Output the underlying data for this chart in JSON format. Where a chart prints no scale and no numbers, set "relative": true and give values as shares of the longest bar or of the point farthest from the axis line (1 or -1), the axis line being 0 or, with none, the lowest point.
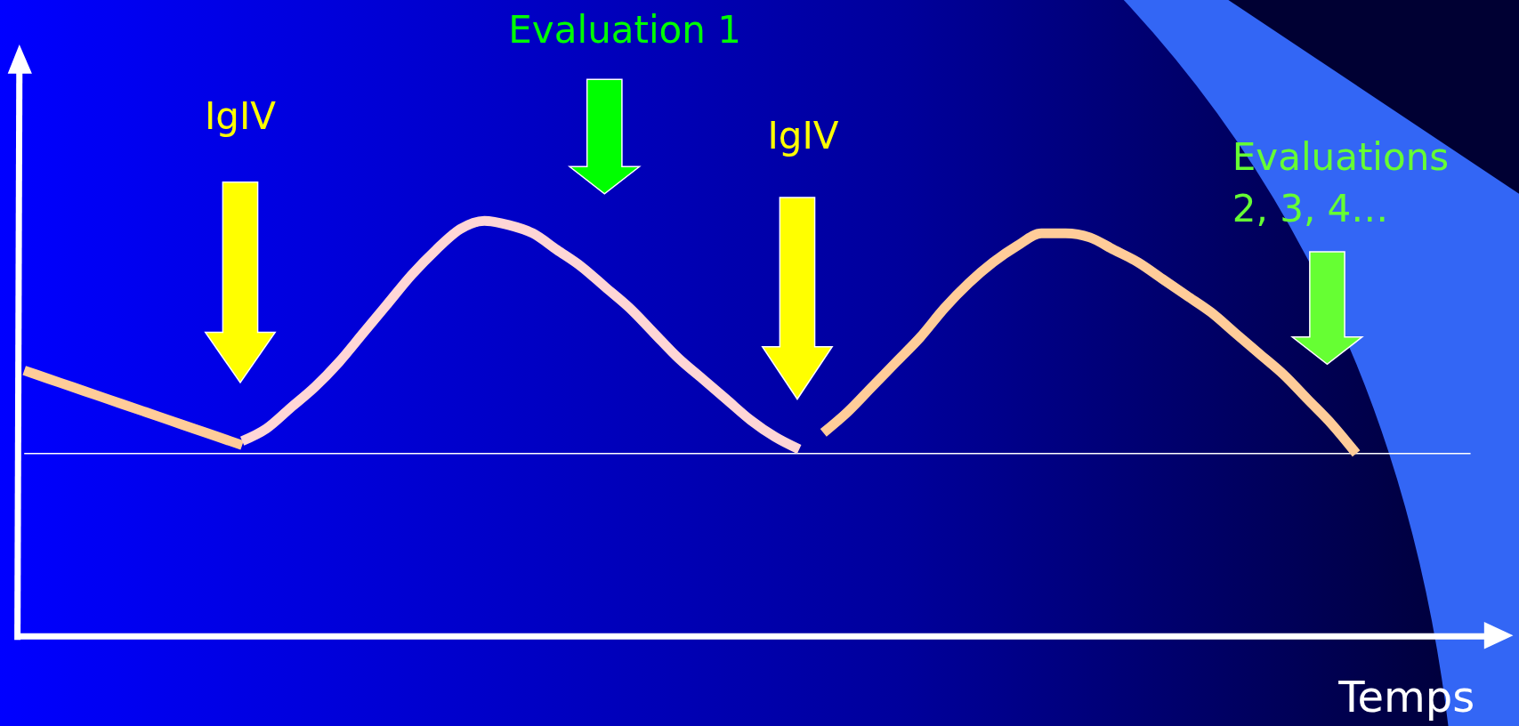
{
  "chart_data": {
    "type": "line",
    "relative": true,
    "xlabel": "Temps",
    "categories": [
      null,
      null,
      null,
      null,
      null,
      null,
      null,
      null,
      null,
      null,
      null,
      null,
      null,
      null,
      null,
      null,
      null,
      null,
      null,
      null,
      null,
      null,
      null,
      null,
      null,
      null,
      null,
      null,
      null,
      null,
      null,
      null,
      null,
      null,
      null,
      null,
      null,
      null,
      null,
      null,
      null,
      null,
      null,
      null,
      null,
      null,
      null,
      null,
      null,
      null,
      null,
      null,
      null,
      null,
      null,
      null
    ],
    "series": [
      {
        "color": "#ffcc99",
        "values": [
          0.64,
          0.62,
          0.6,
          0.58,
          0.56,
          0.54,
          0.52,
          0.5,
          0.48,
          0.46,
          null,
          null,
          null,
          null,
          null,
          null,
          null,
          null,
          null,
          null,
          null,
          null,
          null,
          null,
          null,
          null,
          null,
          null,
          null,
          null,
          null,
          null,
          null,
          null,
          null,
          null,
          null,
          null,
          null,
          null,
          null,
          null,
          null,
          null,
          null,
          null,
          null,
          null,
          null,
          null,
          null,
          null,
          null,
          null,
          null,
          null
        ]
      },
      {
        "color": "#ffd6d6",
        "values": [
          null,
          null,
          null,
          null,
          null,
          null,
          null,
          null,
          null,
          0.47,
          0.5,
          0.55,
          0.6,
          0.66,
          0.73,
          0.8,
          0.87,
          0.93,
          0.98,
          1.0,
          0.99,
          0.97,
          0.93,
          0.89,
          0.84,
          0.79,
          0.73,
          0.67,
          0.62,
          0.57,
          0.52,
          0.48,
          0.45,
          null,
          null,
          null,
          null,
          null,
          null,
          null,
          null,
          null,
          null,
          null,
          null,
          null,
          null,
          null,
          null,
          null,
          null,
          null,
          null,
          null,
          null,
          null
        ]
      },
      {
        "color": "#ffcc99",
        "values": [
          null,
          null,
          null,
          null,
          null,
          null,
          null,
          null,
          null,
          null,
          null,
          null,
          null,
          null,
          null,
          null,
          null,
          null,
          null,
          null,
          null,
          null,
          null,
          null,
          null,
          null,
          null,
          null,
          null,
          null,
          null,
          null,
          null,
          0.49,
          0.54,
          0.6,
          0.66,
          0.72,
          0.79,
          0.85,
          0.9,
          0.94,
          0.97,
          0.97,
          0.96,
          0.93,
          0.9,
          0.86,
          0.82,
          0.78,
          0.73,
          0.68,
          0.63,
          0.57,
          0.51,
          0.44
        ]
      }
    ],
    "ref_lines": [
      {
        "axis": "y",
        "value": 0.44,
        "color": "#ffffff"
      }
    ],
    "annotations": [
      "IgIV",
      "Evaluation 1",
      "IgIV",
      "Evaluations 2, 3, 4…"
    ]
  }
}
